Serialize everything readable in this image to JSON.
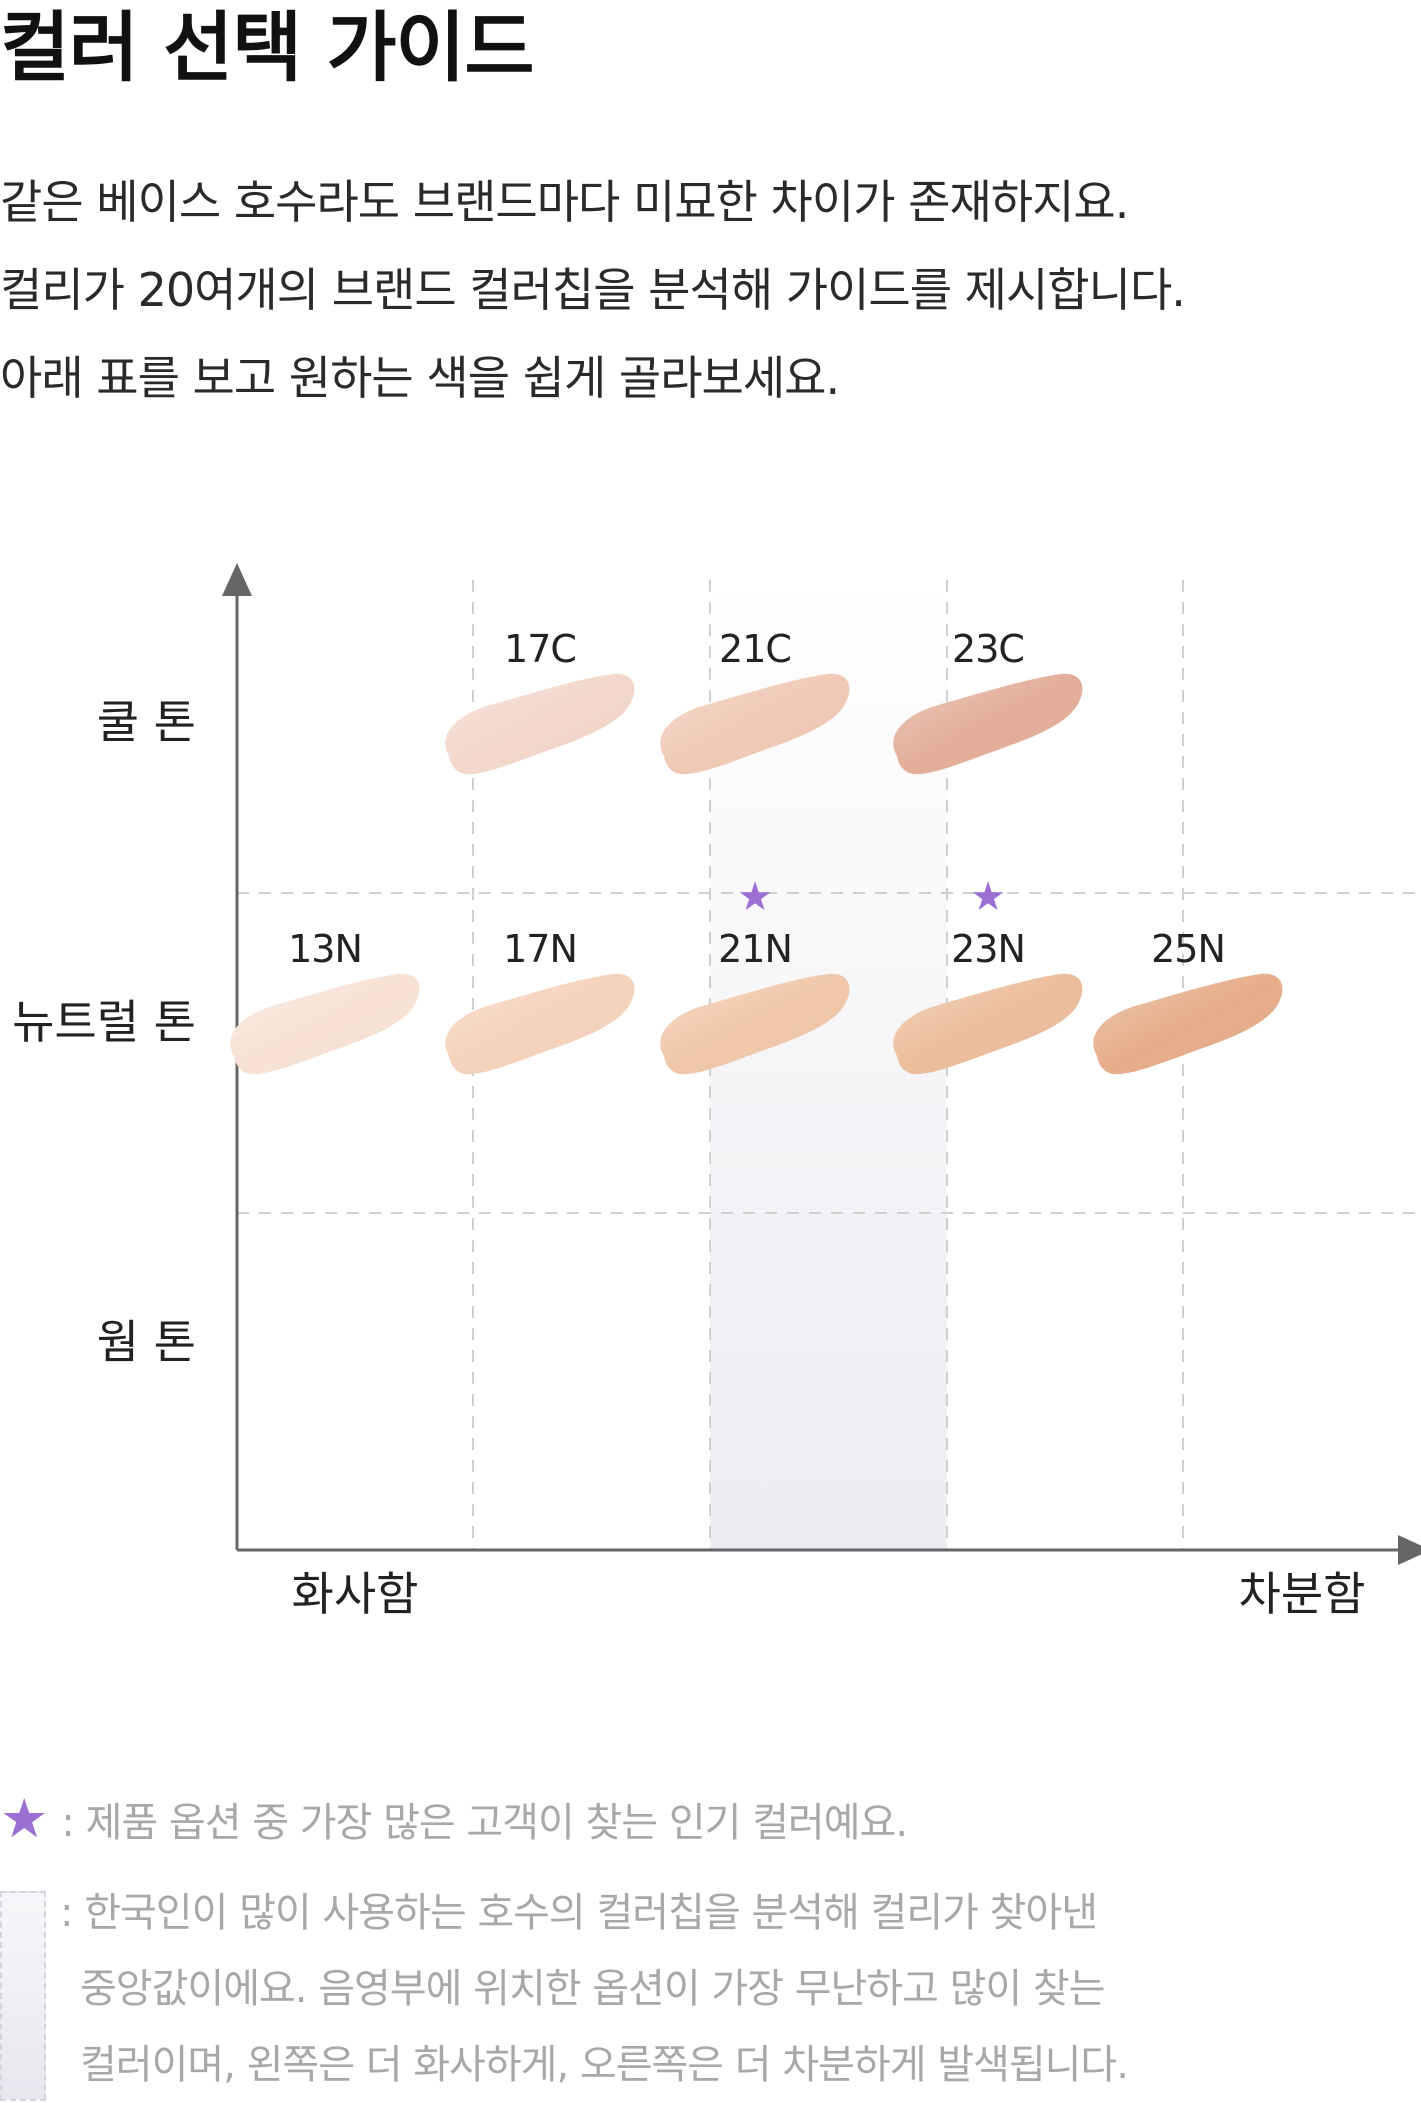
{
  "header": {
    "title": "컬러 선택 가이드"
  },
  "intro": {
    "lines": [
      "같은 베이스 호수라도 브랜드마다 미묘한 차이가 존재하지요.",
      "컬리가 20여개의 브랜드 컬러칩을 분석해 가이드를 제시합니다.",
      "아래 표를 보고 원하는 색을 쉽게 골라보세요."
    ]
  },
  "chart_data": {
    "type": "scatter",
    "title": "",
    "x_axis": {
      "low_label": "화사함",
      "high_label": "차분함"
    },
    "y_axis": {
      "categories": [
        "쿨 톤",
        "뉴트럴 톤",
        "웜 톤"
      ]
    },
    "x_columns": [
      "13",
      "17",
      "21",
      "23",
      "25"
    ],
    "highlight_columns": [
      "21",
      "23"
    ],
    "grid": "dashed",
    "points": [
      {
        "label": "17C",
        "x": "17",
        "tone": "쿨 톤",
        "color": "#f3d7cb",
        "popular": false
      },
      {
        "label": "21C",
        "x": "21",
        "tone": "쿨 톤",
        "color": "#f0c9b5",
        "popular": false
      },
      {
        "label": "23C",
        "x": "23",
        "tone": "쿨 톤",
        "color": "#e3ae99",
        "popular": false
      },
      {
        "label": "13N",
        "x": "13",
        "tone": "뉴트럴 톤",
        "color": "#f7e2d4",
        "popular": false
      },
      {
        "label": "17N",
        "x": "17",
        "tone": "뉴트럴 톤",
        "color": "#f5d2bb",
        "popular": false
      },
      {
        "label": "21N",
        "x": "21",
        "tone": "뉴트럴 톤",
        "color": "#f0c7a9",
        "popular": true
      },
      {
        "label": "23N",
        "x": "23",
        "tone": "뉴트럴 톤",
        "color": "#ecbd9c",
        "popular": true
      },
      {
        "label": "25N",
        "x": "25",
        "tone": "뉴트럴 톤",
        "color": "#e6ad8a",
        "popular": false
      }
    ],
    "colors": {
      "star": "#9b6fd3",
      "axis": "#666666",
      "grid": "#d0d0d0",
      "band": "#ededf2"
    }
  },
  "legend": {
    "star_icon": "star-icon",
    "star_text": ": 제품 옵션 중 가장 많은 고객이 찾는 인기 컬러예요.",
    "band_lines": [
      ": 한국인이 많이 사용하는 호수의 컬러칩을 분석해 컬리가 찾아낸",
      "중앙값이에요. 음영부에 위치한 옵션이 가장 무난하고 많이 찾는",
      "컬러이며, 왼쪽은 더 화사하게, 오른쪽은 더 차분하게 발색됩니다."
    ]
  }
}
